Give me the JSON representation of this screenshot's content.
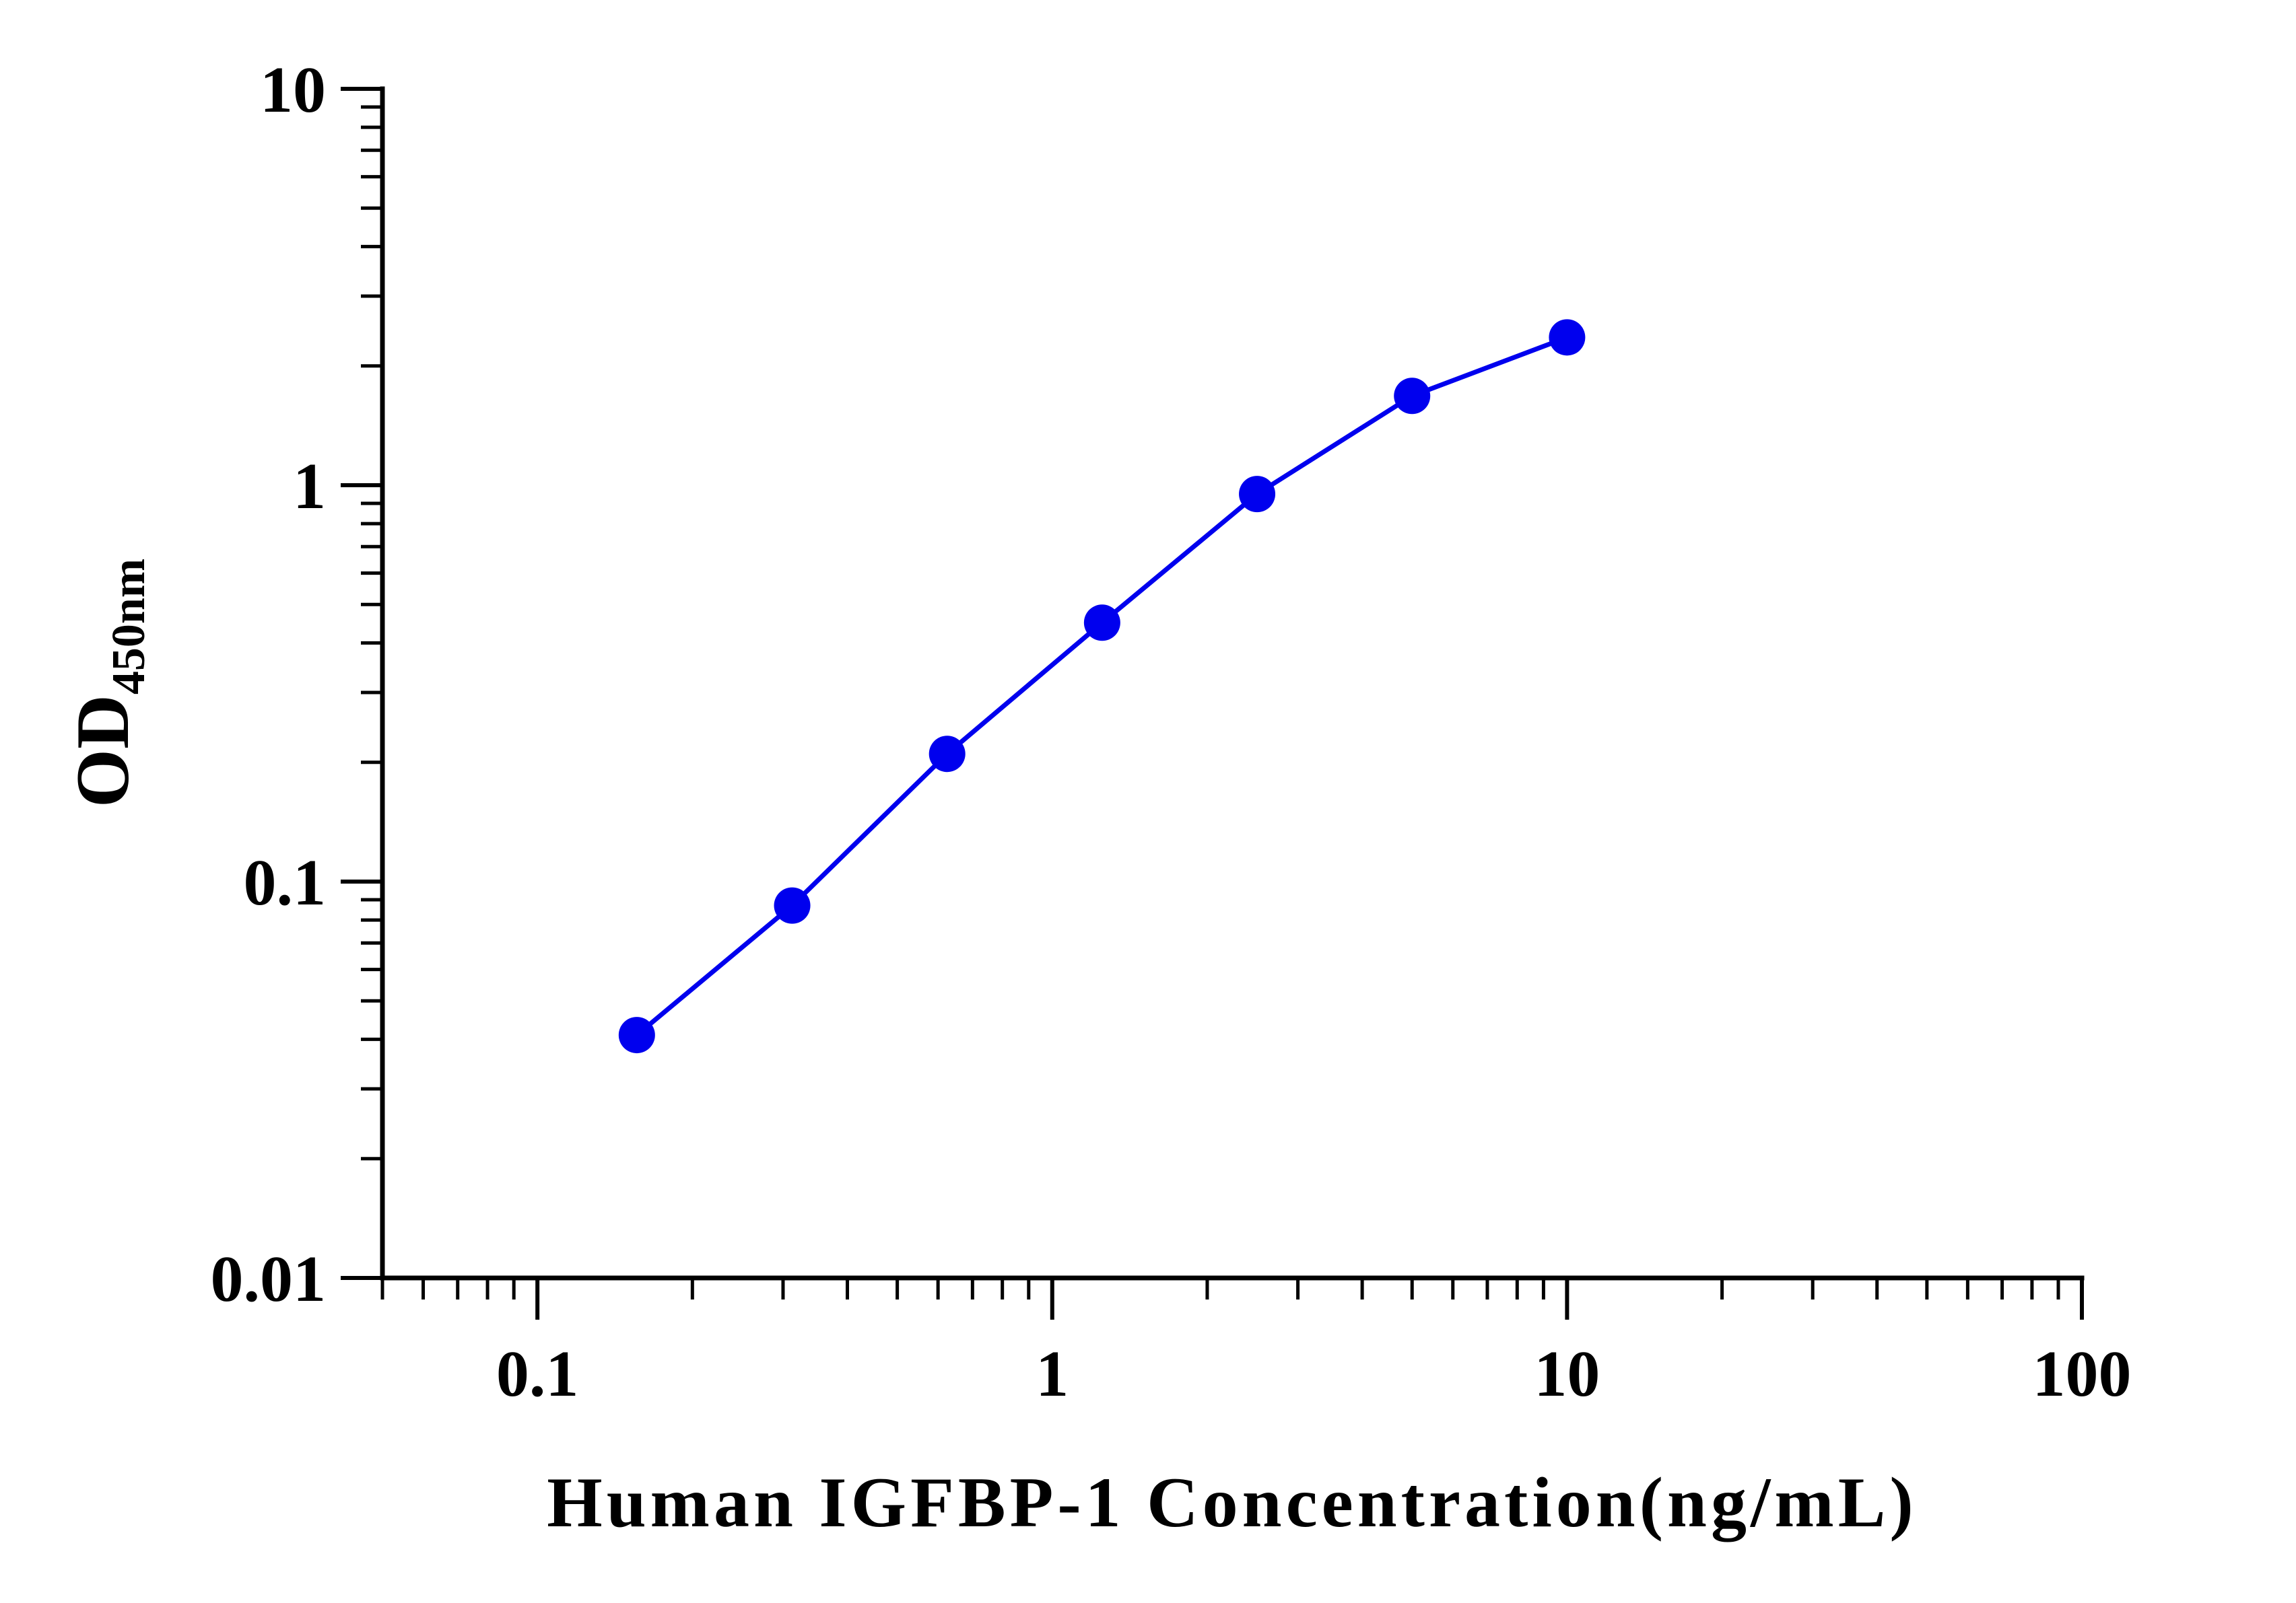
{
  "chart_data": {
    "type": "line",
    "xlabel": "Human IGFBP-1 Concentration(ng/mL)",
    "ylabel_main": "OD",
    "ylabel_sub": "450nm",
    "x_scale": "log",
    "y_scale": "log",
    "xlim": [
      0.05,
      100
    ],
    "ylim": [
      0.01,
      10
    ],
    "x_ticks": [
      "0.1",
      "1",
      "10",
      "100"
    ],
    "y_ticks": [
      "0.01",
      "0.1",
      "1",
      "10"
    ],
    "grid": false,
    "legend": "none",
    "series": [
      {
        "color": "#0000ee",
        "x": [
          0.156,
          0.3125,
          0.625,
          1.25,
          2.5,
          5,
          10
        ],
        "y": [
          0.041,
          0.087,
          0.21,
          0.45,
          0.95,
          1.68,
          2.36
        ]
      }
    ]
  }
}
